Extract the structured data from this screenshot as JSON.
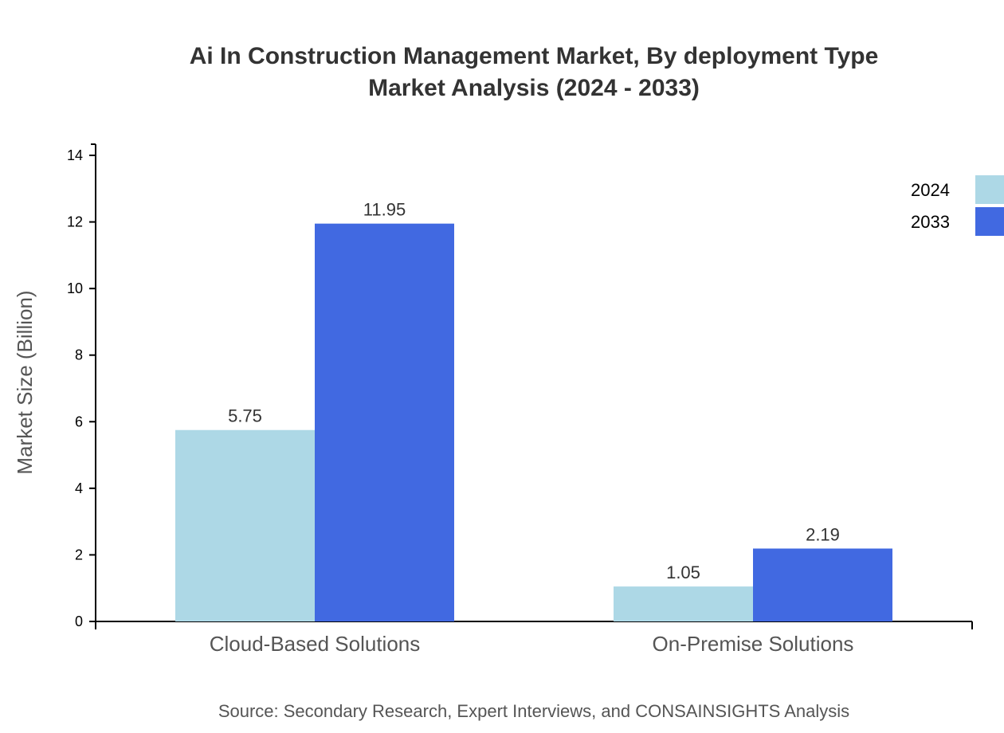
{
  "chart_data": {
    "type": "bar",
    "title_lines": [
      "Ai In Construction Management Market, By deployment Type",
      "Market Analysis (2024 - 2033)"
    ],
    "xlabel": "",
    "ylabel": "Market Size (Billion)",
    "categories": [
      "Cloud-Based Solutions",
      "On-Premise Solutions"
    ],
    "series": [
      {
        "name": "2024",
        "values": [
          5.75,
          1.05
        ],
        "color": "#add8e6"
      },
      {
        "name": "2033",
        "values": [
          11.95,
          2.19
        ],
        "color": "#4169e1"
      }
    ],
    "ylim": [
      0,
      14
    ],
    "yticks": [
      0,
      2,
      4,
      6,
      8,
      10,
      12,
      14
    ],
    "grid": false,
    "legend": "top-right",
    "source": "Source: Secondary Research, Expert Interviews, and CONSAINSIGHTS Analysis"
  }
}
